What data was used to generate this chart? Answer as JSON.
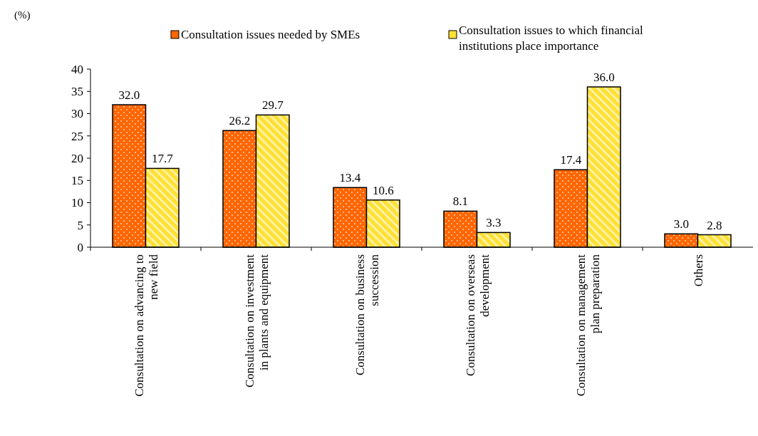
{
  "chart_data": {
    "type": "bar",
    "annotations": [
      "(%)"
    ],
    "categories": [
      "Consultation on advancing to new field",
      "Consultation on investment in plants and equipment",
      "Consultation on business succession",
      "Consultation on overseas development",
      "Consultation on management plan preparation",
      "Others"
    ],
    "series": [
      {
        "name": "Consultation issues needed by SMEs",
        "color": "#ff6600",
        "values": [
          32.0,
          26.2,
          13.4,
          8.1,
          17.4,
          3.0
        ],
        "value_labels": [
          "32.0",
          "26.2",
          "13.4",
          "8.1",
          "17.4",
          "3.0"
        ]
      },
      {
        "name": "Consultation issues to which financial institutions place importance",
        "color": "#ffe033",
        "values": [
          17.7,
          29.7,
          10.6,
          3.3,
          36.0,
          2.8
        ],
        "value_labels": [
          "17.7",
          "29.7",
          "10.6",
          "3.3",
          "36.0",
          "2.8"
        ]
      }
    ],
    "ylim": [
      0,
      40
    ],
    "yticks": [
      0,
      5,
      10,
      15,
      20,
      25,
      30,
      35,
      40
    ],
    "legend": "top"
  }
}
